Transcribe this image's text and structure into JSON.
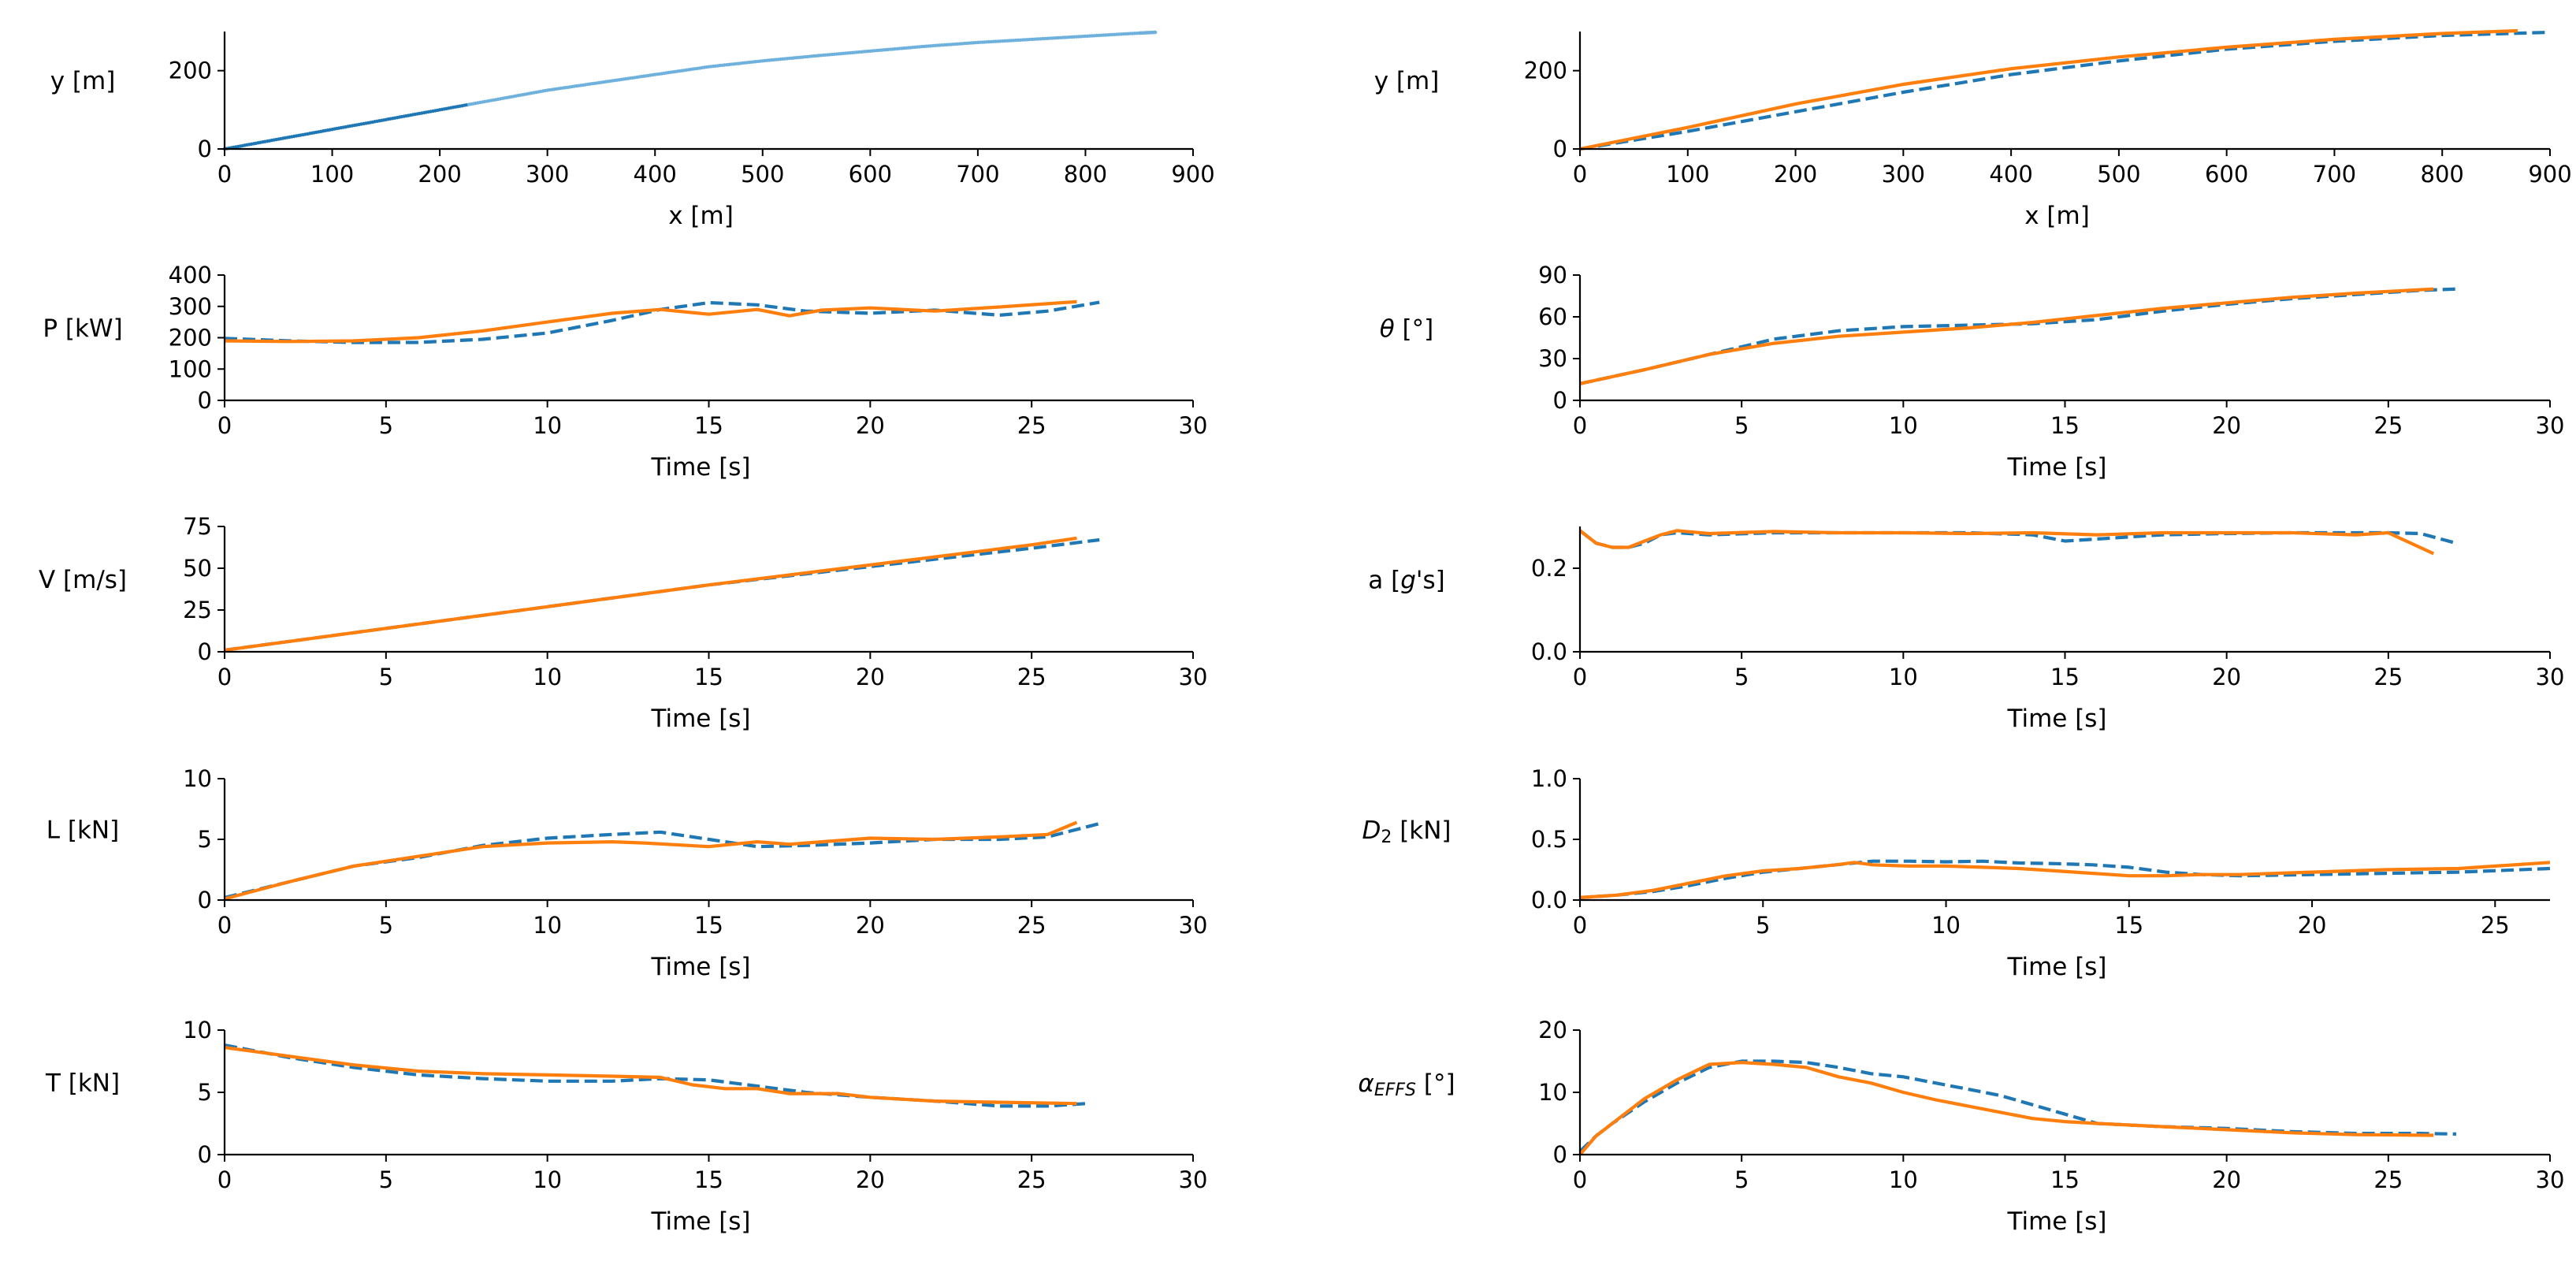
{
  "colors": {
    "series1": "#1f77b4",
    "series2": "#ff7f0e",
    "scatter": "#6fb1dd"
  },
  "legend": [
    "",
    ""
  ],
  "chart_data": [
    {
      "id": "left-trajectory",
      "type": "scatter",
      "title": "",
      "xlabel": "x [m]",
      "ylabel": "y [m]",
      "xlim": [
        0,
        900
      ],
      "ylim": [
        0,
        300
      ],
      "xticks": [
        0,
        100,
        200,
        300,
        400,
        500,
        600,
        700,
        800,
        900
      ],
      "yticks": [
        0,
        200
      ],
      "series": [
        {
          "name": "trajectory",
          "style": "scatter",
          "color": "series1",
          "x": [
            0,
            50,
            100,
            150,
            200,
            250,
            300,
            350,
            400,
            450,
            500,
            550,
            600,
            650,
            700,
            750,
            800,
            850,
            865
          ],
          "y": [
            0,
            25,
            50,
            75,
            100,
            125,
            150,
            170,
            190,
            210,
            225,
            238,
            250,
            262,
            272,
            280,
            288,
            296,
            298
          ]
        }
      ]
    },
    {
      "id": "left-power",
      "type": "line",
      "title": "",
      "xlabel": "Time [s]",
      "ylabel": "P [kW]",
      "xlim": [
        0,
        30
      ],
      "ylim": [
        0,
        400
      ],
      "xticks": [
        0,
        5,
        10,
        15,
        20,
        25,
        30
      ],
      "yticks": [
        0,
        100,
        200,
        300,
        400
      ],
      "series": [
        {
          "name": "dashed",
          "style": "dashed",
          "color": "series1",
          "x": [
            0,
            2,
            4,
            6,
            8,
            10,
            12,
            13.5,
            15,
            16.5,
            18,
            20,
            22,
            24,
            25.5,
            27.1
          ],
          "y": [
            198,
            190,
            185,
            185,
            195,
            215,
            255,
            290,
            312,
            305,
            285,
            278,
            288,
            272,
            285,
            313
          ]
        },
        {
          "name": "solid",
          "style": "solid",
          "color": "series2",
          "x": [
            0,
            2,
            4,
            6,
            8,
            10,
            12,
            13.5,
            15,
            16.5,
            17.5,
            18.5,
            20,
            22,
            24,
            26.4
          ],
          "y": [
            190,
            188,
            190,
            200,
            222,
            250,
            278,
            290,
            275,
            290,
            270,
            288,
            295,
            285,
            298,
            315
          ]
        }
      ]
    },
    {
      "id": "left-velocity",
      "type": "line",
      "title": "",
      "xlabel": "Time [s]",
      "ylabel": "V [m/s]",
      "xlim": [
        0,
        30
      ],
      "ylim": [
        0,
        75
      ],
      "xticks": [
        0,
        5,
        10,
        15,
        20,
        25,
        30
      ],
      "yticks": [
        0,
        25,
        50,
        75
      ],
      "series": [
        {
          "name": "dashed",
          "style": "dashed",
          "color": "series1",
          "x": [
            0,
            5,
            10,
            15,
            20,
            25,
            27.1
          ],
          "y": [
            1,
            14,
            27,
            40,
            51,
            62,
            67
          ]
        },
        {
          "name": "solid",
          "style": "solid",
          "color": "series2",
          "x": [
            0,
            5,
            10,
            15,
            20,
            25,
            26.4
          ],
          "y": [
            1,
            14,
            27,
            40,
            52,
            64,
            68
          ]
        }
      ]
    },
    {
      "id": "left-lift",
      "type": "line",
      "title": "",
      "xlabel": "Time [s]",
      "ylabel": "L [kN]",
      "xlim": [
        0,
        30
      ],
      "ylim": [
        0,
        10
      ],
      "xticks": [
        0,
        5,
        10,
        15,
        20,
        25,
        30
      ],
      "yticks": [
        0,
        5,
        10
      ],
      "series": [
        {
          "name": "dashed",
          "style": "dashed",
          "color": "series1",
          "x": [
            0,
            2,
            4,
            6,
            8,
            10,
            12,
            13.5,
            15,
            16.5,
            18,
            20,
            22,
            24,
            25.5,
            27.1
          ],
          "y": [
            0.2,
            1.5,
            2.8,
            3.5,
            4.5,
            5.1,
            5.4,
            5.6,
            5.0,
            4.4,
            4.5,
            4.7,
            5.0,
            5.0,
            5.2,
            6.3
          ]
        },
        {
          "name": "solid",
          "style": "solid",
          "color": "series2",
          "x": [
            0,
            2,
            4,
            6,
            8,
            10,
            12,
            13,
            15,
            16.5,
            17.5,
            18.5,
            20,
            22,
            24,
            25.5,
            26.4
          ],
          "y": [
            0.1,
            1.5,
            2.8,
            3.6,
            4.4,
            4.7,
            4.8,
            4.7,
            4.4,
            4.8,
            4.6,
            4.8,
            5.1,
            5.0,
            5.2,
            5.4,
            6.4
          ]
        }
      ]
    },
    {
      "id": "left-thrust",
      "type": "line",
      "title": "",
      "xlabel": "Time [s]",
      "ylabel": "T [kN]",
      "xlim": [
        0,
        30
      ],
      "ylim": [
        0,
        10
      ],
      "xticks": [
        0,
        5,
        10,
        15,
        20,
        25,
        30
      ],
      "yticks": [
        0,
        5,
        10
      ],
      "series": [
        {
          "name": "dashed",
          "style": "dashed",
          "color": "series1",
          "x": [
            0,
            2,
            4,
            6,
            8,
            10,
            12,
            13.5,
            15,
            16.5,
            18,
            20,
            22,
            24,
            25.5,
            26.7
          ],
          "y": [
            8.8,
            7.8,
            7.0,
            6.4,
            6.1,
            5.9,
            5.9,
            6.1,
            6.0,
            5.5,
            5.0,
            4.6,
            4.3,
            3.9,
            3.9,
            4.1
          ]
        },
        {
          "name": "solid",
          "style": "solid",
          "color": "series2",
          "x": [
            0,
            2,
            4,
            6,
            8,
            10,
            12,
            13.5,
            14.5,
            15.5,
            16.5,
            17.5,
            19,
            20,
            22,
            24,
            26.4
          ],
          "y": [
            8.6,
            7.9,
            7.2,
            6.7,
            6.5,
            6.4,
            6.3,
            6.2,
            5.6,
            5.3,
            5.3,
            4.9,
            4.9,
            4.6,
            4.3,
            4.2,
            4.1
          ]
        }
      ]
    },
    {
      "id": "right-trajectory",
      "type": "line",
      "title": "",
      "xlabel": "x [m]",
      "ylabel": "y [m]",
      "xlim": [
        0,
        900
      ],
      "ylim": [
        0,
        300
      ],
      "xticks": [
        0,
        100,
        200,
        300,
        400,
        500,
        600,
        700,
        800,
        900
      ],
      "yticks": [
        0,
        200
      ],
      "series": [
        {
          "name": "dashed",
          "style": "dashed",
          "color": "series1",
          "x": [
            0,
            100,
            200,
            300,
            400,
            500,
            600,
            700,
            800,
            900
          ],
          "y": [
            0,
            45,
            95,
            145,
            190,
            225,
            255,
            275,
            290,
            298
          ]
        },
        {
          "name": "solid",
          "style": "solid",
          "color": "series2",
          "x": [
            0,
            100,
            200,
            300,
            400,
            500,
            600,
            700,
            800,
            870
          ],
          "y": [
            0,
            55,
            115,
            165,
            205,
            235,
            260,
            280,
            295,
            302
          ]
        }
      ]
    },
    {
      "id": "right-theta",
      "type": "line",
      "title": "",
      "xlabel": "Time [s]",
      "ylabel": "θ [°]",
      "xlim": [
        0,
        30
      ],
      "ylim": [
        0,
        90
      ],
      "xticks": [
        0,
        5,
        10,
        15,
        20,
        25,
        30
      ],
      "yticks": [
        0,
        30,
        60,
        90
      ],
      "series": [
        {
          "name": "dashed",
          "style": "dashed",
          "color": "series1",
          "x": [
            0,
            2,
            4,
            6,
            8,
            10,
            12,
            14,
            16,
            18,
            20,
            22,
            24,
            26,
            27.1
          ],
          "y": [
            12,
            22,
            33,
            44,
            50,
            53,
            54,
            55,
            58,
            64,
            69,
            73,
            76,
            79,
            80
          ]
        },
        {
          "name": "solid",
          "style": "solid",
          "color": "series2",
          "x": [
            0,
            2,
            4,
            6,
            8,
            10,
            12,
            14,
            16,
            18,
            20,
            22,
            24,
            26.4
          ],
          "y": [
            12,
            22,
            33,
            41,
            46,
            49,
            52,
            56,
            61,
            66,
            70,
            74,
            77,
            80
          ]
        }
      ]
    },
    {
      "id": "right-accel",
      "type": "line",
      "title": "",
      "xlabel": "Time [s]",
      "ylabel": "a [g's]",
      "xlim": [
        0,
        30
      ],
      "ylim": [
        0,
        0.3
      ],
      "xticks": [
        0,
        5,
        10,
        15,
        20,
        25,
        30
      ],
      "yticks": [
        0.0,
        0.2
      ],
      "series": [
        {
          "name": "dashed",
          "style": "dashed",
          "color": "series1",
          "x": [
            0,
            0.5,
            1,
            1.5,
            2,
            2.5,
            3,
            4,
            6,
            8,
            10,
            12,
            14,
            15,
            16,
            18,
            20,
            22,
            24,
            25,
            26,
            27.1
          ],
          "y": [
            0.29,
            0.26,
            0.25,
            0.25,
            0.26,
            0.28,
            0.285,
            0.28,
            0.285,
            0.285,
            0.285,
            0.285,
            0.28,
            0.265,
            0.27,
            0.28,
            0.283,
            0.285,
            0.285,
            0.285,
            0.283,
            0.26
          ]
        },
        {
          "name": "solid",
          "style": "solid",
          "color": "series2",
          "x": [
            0,
            0.5,
            1,
            1.5,
            2,
            2.5,
            3,
            4,
            6,
            8,
            10,
            12,
            14,
            16,
            18,
            20,
            22,
            24,
            25,
            26.4
          ],
          "y": [
            0.29,
            0.26,
            0.25,
            0.25,
            0.265,
            0.28,
            0.29,
            0.283,
            0.288,
            0.285,
            0.285,
            0.283,
            0.285,
            0.28,
            0.285,
            0.285,
            0.285,
            0.28,
            0.285,
            0.235
          ]
        }
      ]
    },
    {
      "id": "right-drag",
      "type": "line",
      "title": "",
      "xlabel": "Time [s]",
      "ylabel": "D2 [kN]",
      "xlim": [
        0,
        26.5
      ],
      "ylim": [
        0,
        1.0
      ],
      "xticks": [
        0,
        5,
        10,
        15,
        20,
        25
      ],
      "yticks": [
        0.0,
        0.5,
        1.0
      ],
      "series": [
        {
          "name": "dashed",
          "style": "dashed",
          "color": "series1",
          "x": [
            0,
            1,
            2,
            3,
            4,
            5,
            6,
            7,
            8,
            9,
            10,
            11,
            12,
            13,
            14,
            15,
            16,
            17,
            18,
            20,
            22,
            24,
            26.5
          ],
          "y": [
            0.02,
            0.04,
            0.07,
            0.12,
            0.18,
            0.23,
            0.26,
            0.29,
            0.32,
            0.32,
            0.315,
            0.32,
            0.305,
            0.3,
            0.29,
            0.27,
            0.23,
            0.21,
            0.2,
            0.21,
            0.22,
            0.23,
            0.26
          ]
        },
        {
          "name": "solid",
          "style": "solid",
          "color": "series2",
          "x": [
            0,
            1,
            2,
            3,
            4,
            5,
            6,
            7,
            7.5,
            8,
            9,
            10,
            11,
            12,
            13,
            14,
            15,
            16,
            17,
            18,
            20,
            22,
            24,
            26.5
          ],
          "y": [
            0.02,
            0.04,
            0.08,
            0.14,
            0.2,
            0.24,
            0.26,
            0.29,
            0.31,
            0.29,
            0.28,
            0.28,
            0.27,
            0.26,
            0.24,
            0.22,
            0.2,
            0.2,
            0.21,
            0.21,
            0.23,
            0.25,
            0.26,
            0.31
          ]
        }
      ]
    },
    {
      "id": "right-alpha",
      "type": "line",
      "title": "",
      "xlabel": "Time [s]",
      "ylabel": "αEFFS [°]",
      "xlim": [
        0,
        30
      ],
      "ylim": [
        0,
        20
      ],
      "xticks": [
        0,
        5,
        10,
        15,
        20,
        25,
        30
      ],
      "yticks": [
        0,
        10,
        20
      ],
      "series": [
        {
          "name": "dashed",
          "style": "dashed",
          "color": "series1",
          "x": [
            0,
            0.5,
            1,
            2,
            3,
            4,
            5,
            6,
            7,
            8,
            9,
            10,
            11,
            12,
            13,
            14,
            15,
            16,
            18,
            20,
            22,
            24,
            26,
            27.1
          ],
          "y": [
            0.5,
            3,
            5,
            8.5,
            11.5,
            14,
            15,
            15,
            14.8,
            14,
            13,
            12.5,
            11.5,
            10.5,
            9.5,
            8,
            6.5,
            5,
            4.5,
            4.2,
            3.7,
            3.4,
            3.4,
            3.3
          ]
        },
        {
          "name": "solid",
          "style": "solid",
          "color": "series2",
          "x": [
            0,
            0.5,
            1,
            2,
            3,
            4,
            5,
            6,
            7,
            8,
            9,
            10,
            11,
            12,
            13,
            14,
            15,
            16,
            18,
            20,
            22,
            24,
            26.4
          ],
          "y": [
            0,
            3,
            5,
            9,
            12,
            14.5,
            14.8,
            14.5,
            14,
            12.5,
            11.5,
            10,
            8.8,
            7.8,
            6.8,
            5.8,
            5.3,
            5,
            4.5,
            4.0,
            3.5,
            3.2,
            3.1
          ]
        }
      ]
    }
  ]
}
